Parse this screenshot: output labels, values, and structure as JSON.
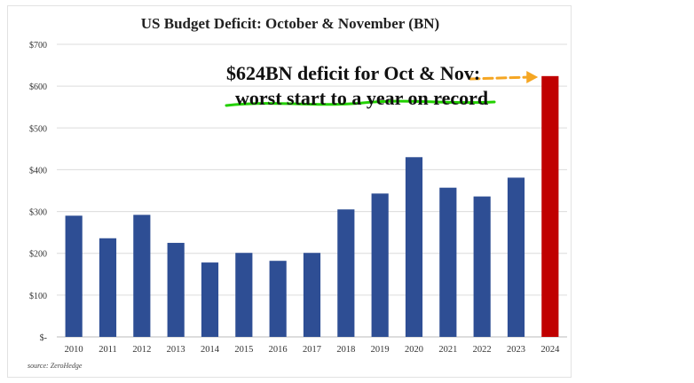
{
  "chart_data": {
    "type": "bar",
    "title": "US Budget Deficit: October & November (BN)",
    "categories": [
      "2010",
      "2011",
      "2012",
      "2013",
      "2014",
      "2015",
      "2016",
      "2017",
      "2018",
      "2019",
      "2020",
      "2021",
      "2022",
      "2023",
      "2024"
    ],
    "values": [
      290,
      236,
      292,
      225,
      178,
      201,
      182,
      201,
      305,
      343,
      430,
      357,
      336,
      381,
      624
    ],
    "ylim": [
      0,
      700
    ],
    "yticks": [
      0,
      100,
      200,
      300,
      400,
      500,
      600,
      700
    ],
    "ytick_labels": [
      "$-",
      "$100",
      "$200",
      "$300",
      "$400",
      "$500",
      "$600",
      "$700"
    ],
    "grid": true,
    "colors": {
      "bar": "#2e4e94",
      "highlight": "#c00000",
      "underline": "#22d000",
      "arrow": "#f5a623"
    },
    "highlight_category": "2024",
    "annotation": {
      "line1": "$624BN deficit for Oct & Nov:",
      "line2": "worst start to a year on record"
    },
    "source": "source: ZeroHedge"
  }
}
